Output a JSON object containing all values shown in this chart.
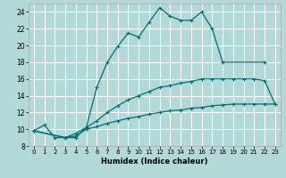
{
  "bg_color": "#b2d8d8",
  "grid_color": "#ffffff",
  "line_color": "#007070",
  "xlabel": "Humidex (Indice chaleur)",
  "xlim": [
    -0.5,
    23.5
  ],
  "ylim": [
    8,
    25
  ],
  "xticks": [
    0,
    1,
    2,
    3,
    4,
    5,
    6,
    7,
    8,
    9,
    10,
    11,
    12,
    13,
    14,
    15,
    16,
    17,
    18,
    19,
    20,
    21,
    22,
    23
  ],
  "yticks": [
    8,
    10,
    12,
    14,
    16,
    18,
    20,
    22,
    24
  ],
  "line1_x": [
    0,
    1,
    2,
    3,
    4,
    5,
    6,
    7,
    8,
    9,
    10,
    11,
    12,
    13,
    14,
    15,
    16,
    17,
    18,
    22
  ],
  "line1_y": [
    9.8,
    10.5,
    9.0,
    9.0,
    9.0,
    10.2,
    15.0,
    18.0,
    19.9,
    21.5,
    21.0,
    22.8,
    24.5,
    23.5,
    23.0,
    23.0,
    24.0,
    22.0,
    18.0,
    18.0
  ],
  "line2_x": [
    0,
    3,
    4,
    5,
    6,
    7,
    8,
    9,
    10,
    11,
    12,
    13,
    14,
    15,
    16,
    17,
    18,
    19,
    20,
    21,
    22,
    23
  ],
  "line2_y": [
    9.8,
    9.0,
    9.5,
    10.2,
    11.0,
    12.0,
    12.8,
    13.5,
    14.0,
    14.5,
    15.0,
    15.2,
    15.5,
    15.7,
    16.0,
    16.0,
    16.0,
    16.0,
    16.0,
    16.0,
    15.8,
    13.0
  ],
  "line3_x": [
    0,
    3,
    4,
    5,
    6,
    7,
    8,
    9,
    10,
    11,
    12,
    13,
    14,
    15,
    16,
    17,
    18,
    19,
    20,
    21,
    22,
    23
  ],
  "line3_y": [
    9.8,
    9.0,
    9.2,
    10.0,
    10.3,
    10.7,
    11.0,
    11.3,
    11.5,
    11.8,
    12.0,
    12.2,
    12.3,
    12.5,
    12.6,
    12.8,
    12.9,
    13.0,
    13.0,
    13.0,
    13.0,
    13.0
  ]
}
